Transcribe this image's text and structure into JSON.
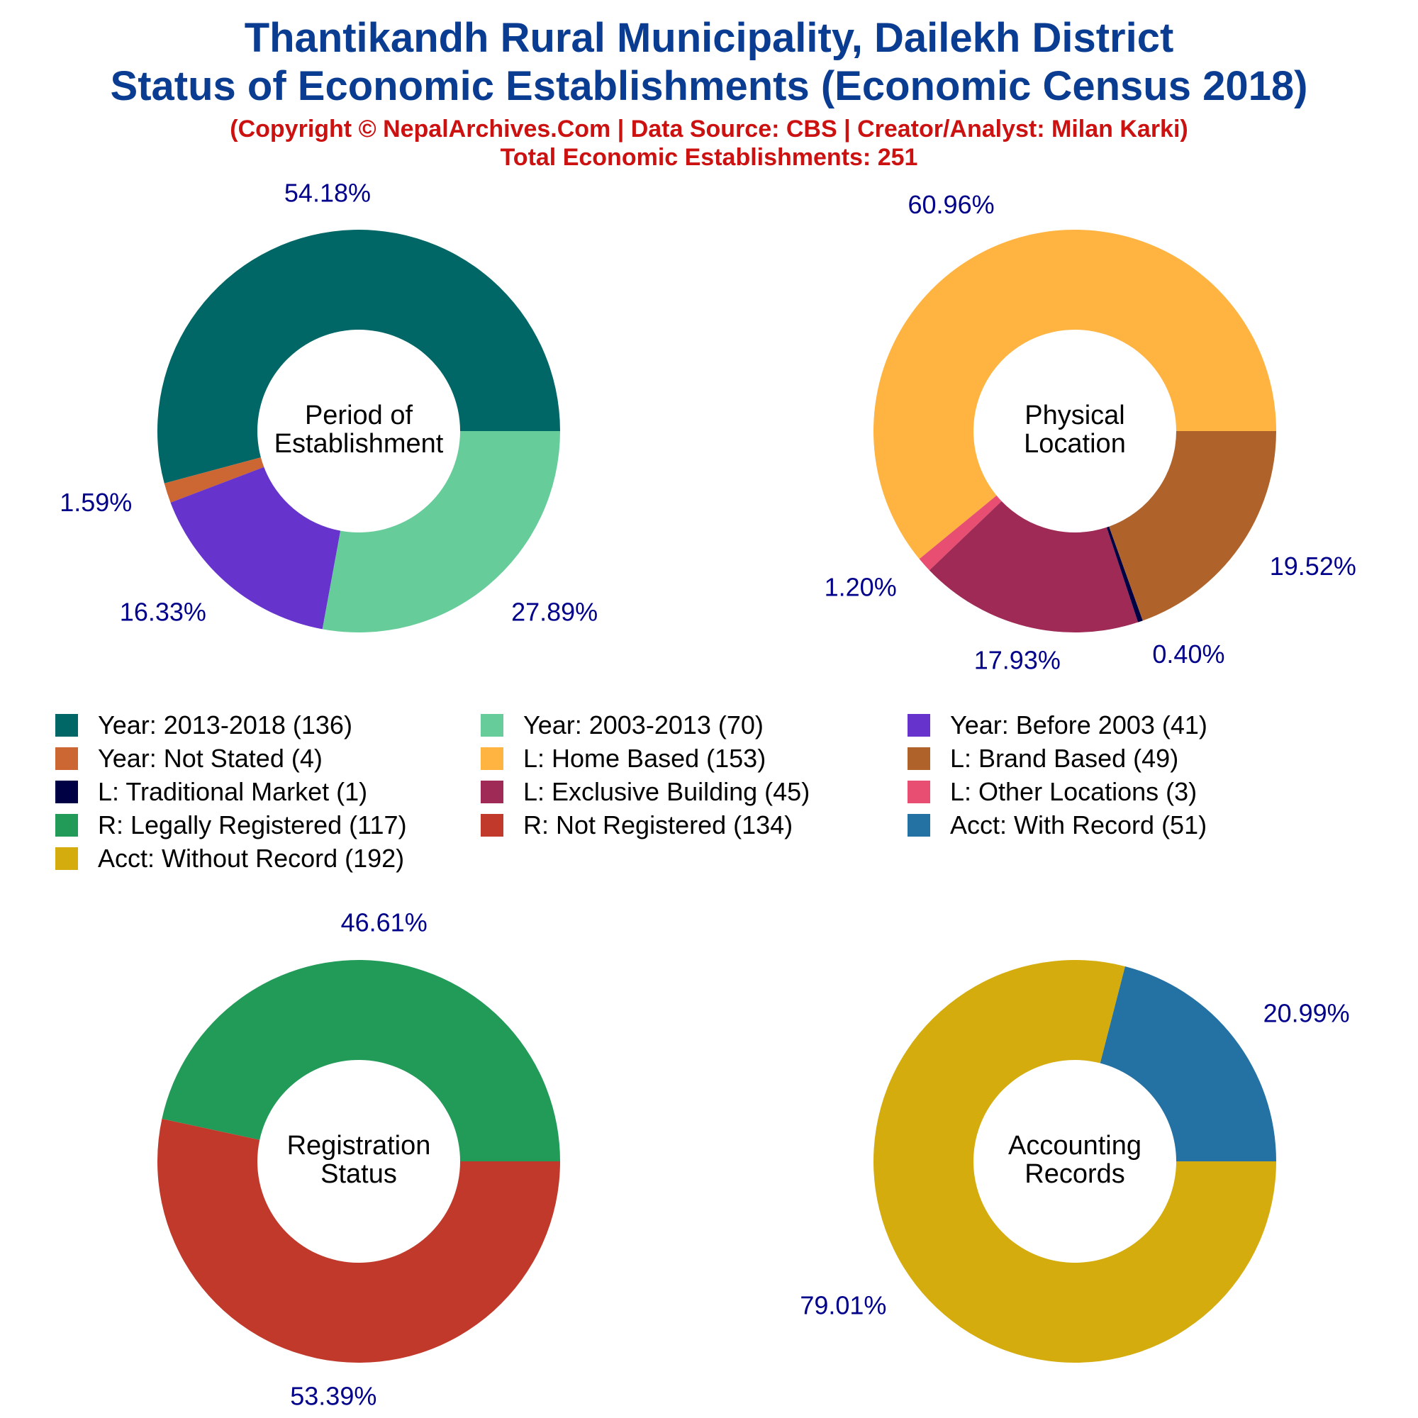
{
  "header": {
    "title_line1": "Thantikandh Rural Municipality, Dailekh District",
    "title_line2": "Status of Economic Establishments (Economic Census 2018)",
    "subtitle_line1": "(Copyright © NepalArchives.Com | Data Source: CBS | Creator/Analyst: Milan Karki)",
    "subtitle_line2": "Total Economic Establishments: 251"
  },
  "colors": {
    "title": "#0a3d91",
    "subtitle": "#cc1111",
    "pct_label": "#00008b"
  },
  "legend": [
    {
      "label": "Year: 2013-2018 (136)",
      "color": "#006666"
    },
    {
      "label": "Year: 2003-2013 (70)",
      "color": "#66cc99"
    },
    {
      "label": "Year: Before 2003 (41)",
      "color": "#6633cc"
    },
    {
      "label": "Year: Not Stated (4)",
      "color": "#cc6633"
    },
    {
      "label": "L: Home Based (153)",
      "color": "#ffb340"
    },
    {
      "label": "L: Brand Based (49)",
      "color": "#b0622b"
    },
    {
      "label": "L: Traditional Market (1)",
      "color": "#000044"
    },
    {
      "label": "L: Exclusive Building (45)",
      "color": "#9e2a55"
    },
    {
      "label": "L: Other Locations (3)",
      "color": "#e84d72"
    },
    {
      "label": "R: Legally Registered (117)",
      "color": "#229a58"
    },
    {
      "label": "R: Not Registered (134)",
      "color": "#c0392b"
    },
    {
      "label": "Acct: With Record (51)",
      "color": "#2471a3"
    },
    {
      "label": "Acct: Without Record (192)",
      "color": "#d4ac0d"
    }
  ],
  "chart_data": [
    {
      "type": "pie",
      "center_label": [
        "Period of",
        "Establishment"
      ],
      "slices": [
        {
          "label": "Year: 2013-2018",
          "value": 136,
          "pct": "54.18%",
          "color": "#006666"
        },
        {
          "label": "Year: Not Stated",
          "value": 4,
          "pct": "1.59%",
          "color": "#cc6633"
        },
        {
          "label": "Year: Before 2003",
          "value": 41,
          "pct": "16.33%",
          "color": "#6633cc"
        },
        {
          "label": "Year: 2003-2013",
          "value": 70,
          "pct": "27.89%",
          "color": "#66cc99"
        }
      ]
    },
    {
      "type": "pie",
      "center_label": [
        "Physical",
        "Location"
      ],
      "slices": [
        {
          "label": "L: Home Based",
          "value": 153,
          "pct": "60.96%",
          "color": "#ffb340"
        },
        {
          "label": "L: Other Locations",
          "value": 3,
          "pct": "1.20%",
          "color": "#e84d72"
        },
        {
          "label": "L: Exclusive Building",
          "value": 45,
          "pct": "17.93%",
          "color": "#9e2a55"
        },
        {
          "label": "L: Traditional Market",
          "value": 1,
          "pct": "0.40%",
          "color": "#000044"
        },
        {
          "label": "L: Brand Based",
          "value": 49,
          "pct": "19.52%",
          "color": "#b0622b"
        }
      ]
    },
    {
      "type": "pie",
      "center_label": [
        "Registration",
        "Status"
      ],
      "slices": [
        {
          "label": "R: Legally Registered",
          "value": 117,
          "pct": "46.61%",
          "color": "#229a58"
        },
        {
          "label": "R: Not Registered",
          "value": 134,
          "pct": "53.39%",
          "color": "#c0392b"
        }
      ]
    },
    {
      "type": "pie",
      "center_label": [
        "Accounting",
        "Records"
      ],
      "slices": [
        {
          "label": "Acct: With Record",
          "value": 51,
          "pct": "20.99%",
          "color": "#2471a3"
        },
        {
          "label": "Acct: Without Record",
          "value": 192,
          "pct": "79.01%",
          "color": "#d4ac0d"
        }
      ]
    }
  ]
}
